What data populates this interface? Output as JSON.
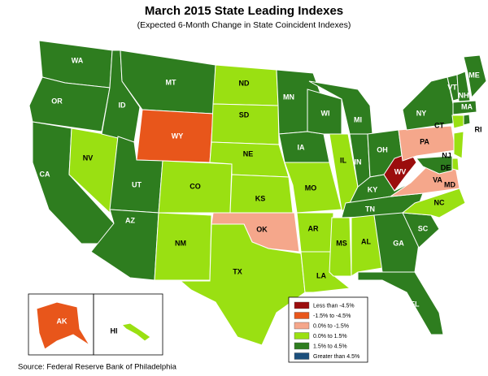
{
  "title": "March 2015 State Leading Indexes",
  "subtitle": "(Expected 6-Month Change in State Coincident Indexes)",
  "source": "Source: Federal Reserve Bank of Philadelphia",
  "legend": [
    {
      "label": "Less than -4.5%",
      "color": "#9b0d0d"
    },
    {
      "label": "-1.5% to -4.5%",
      "color": "#e8561b"
    },
    {
      "label": "0.0% to -1.5%",
      "color": "#f5a78b"
    },
    {
      "label": "0.0% to 1.5%",
      "color": "#9ae012"
    },
    {
      "label": "1.5% to 4.5%",
      "color": "#2e7d1f"
    },
    {
      "label": "Greater than 4.5%",
      "color": "#1c4f7c"
    }
  ],
  "states": [
    {
      "label": "WA",
      "fill": "#2e7d1f"
    },
    {
      "label": "OR",
      "fill": "#2e7d1f"
    },
    {
      "label": "CA",
      "fill": "#2e7d1f"
    },
    {
      "label": "NV",
      "fill": "#9ae012"
    },
    {
      "label": "ID",
      "fill": "#2e7d1f"
    },
    {
      "label": "MT",
      "fill": "#2e7d1f"
    },
    {
      "label": "WY",
      "fill": "#e8561b"
    },
    {
      "label": "UT",
      "fill": "#2e7d1f"
    },
    {
      "label": "AZ",
      "fill": "#2e7d1f"
    },
    {
      "label": "CO",
      "fill": "#9ae012"
    },
    {
      "label": "NM",
      "fill": "#9ae012"
    },
    {
      "label": "ND",
      "fill": "#9ae012"
    },
    {
      "label": "SD",
      "fill": "#9ae012"
    },
    {
      "label": "NE",
      "fill": "#9ae012"
    },
    {
      "label": "KS",
      "fill": "#9ae012"
    },
    {
      "label": "OK",
      "fill": "#f5a78b"
    },
    {
      "label": "TX",
      "fill": "#9ae012"
    },
    {
      "label": "MN",
      "fill": "#2e7d1f"
    },
    {
      "label": "IA",
      "fill": "#2e7d1f"
    },
    {
      "label": "MO",
      "fill": "#9ae012"
    },
    {
      "label": "AR",
      "fill": "#9ae012"
    },
    {
      "label": "LA",
      "fill": "#9ae012"
    },
    {
      "label": "WI",
      "fill": "#2e7d1f"
    },
    {
      "label": "IL",
      "fill": "#9ae012"
    },
    {
      "label": "MI",
      "fill": "#2e7d1f"
    },
    {
      "label": "IN",
      "fill": "#2e7d1f"
    },
    {
      "label": "OH",
      "fill": "#2e7d1f"
    },
    {
      "label": "KY",
      "fill": "#2e7d1f"
    },
    {
      "label": "TN",
      "fill": "#2e7d1f"
    },
    {
      "label": "MS",
      "fill": "#9ae012"
    },
    {
      "label": "AL",
      "fill": "#9ae012"
    },
    {
      "label": "GA",
      "fill": "#2e7d1f"
    },
    {
      "label": "FL",
      "fill": "#2e7d1f"
    },
    {
      "label": "SC",
      "fill": "#2e7d1f"
    },
    {
      "label": "NC",
      "fill": "#9ae012"
    },
    {
      "label": "VA",
      "fill": "#f5a78b"
    },
    {
      "label": "WV",
      "fill": "#9b0d0d"
    },
    {
      "label": "PA",
      "fill": "#f5a78b"
    },
    {
      "label": "NY",
      "fill": "#2e7d1f"
    },
    {
      "label": "VT",
      "fill": "#2e7d1f"
    },
    {
      "label": "NH",
      "fill": "#2e7d1f"
    },
    {
      "label": "ME",
      "fill": "#2e7d1f"
    },
    {
      "label": "MA",
      "fill": "#2e7d1f"
    },
    {
      "label": "CT",
      "fill": "#9ae012"
    },
    {
      "label": "RI",
      "fill": "#2e7d1f"
    },
    {
      "label": "NJ",
      "fill": "#9ae012"
    },
    {
      "label": "DE",
      "fill": "#9ae012"
    },
    {
      "label": "MD",
      "fill": "#2e7d1f"
    },
    {
      "label": "AK",
      "fill": "#e8561b"
    },
    {
      "label": "HI",
      "fill": "#9ae012"
    }
  ]
}
